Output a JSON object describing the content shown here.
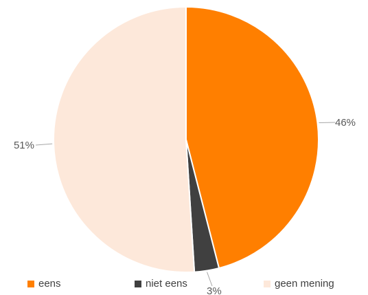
{
  "chart_data": {
    "type": "pie",
    "categories": [
      "eens",
      "niet eens",
      "geen mening"
    ],
    "values": [
      46,
      3,
      51
    ],
    "labels": [
      "46%",
      "3%",
      "51%"
    ],
    "colors": [
      "#ff7f00",
      "#404040",
      "#fde8da"
    ],
    "legend_position": "bottom",
    "title": ""
  }
}
